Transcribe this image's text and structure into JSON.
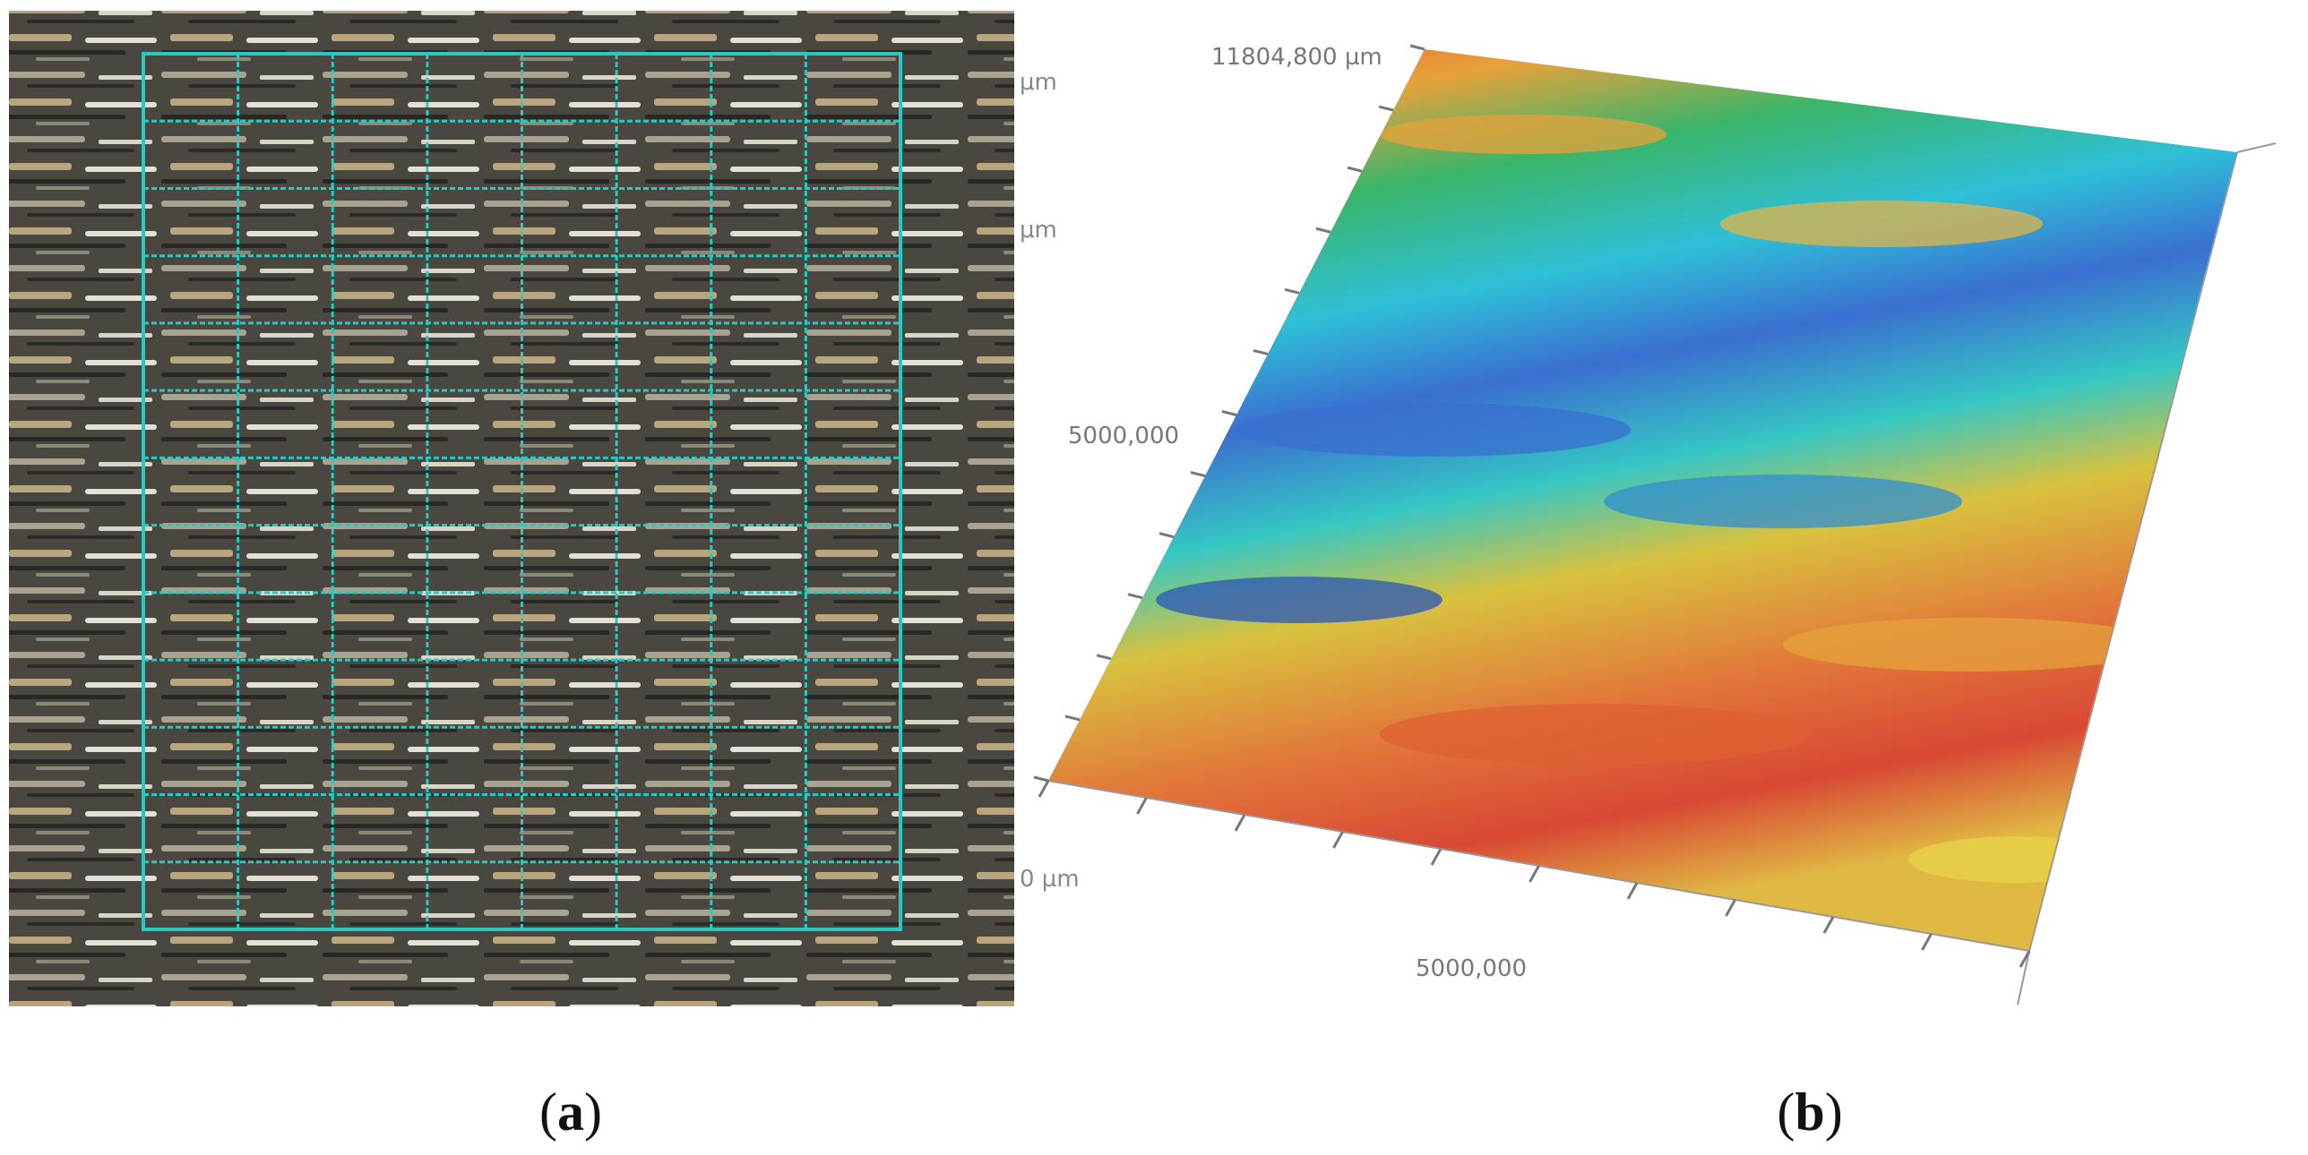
{
  "panel_a": {
    "caption_letter": "a",
    "caption_open": "(",
    "caption_close": ")",
    "labels_clipped": [
      "",
      "",
      "0 µm"
    ],
    "grid_color": "#27c9c0"
  },
  "panel_b": {
    "caption_letter": "b",
    "caption_open": "(",
    "caption_close": ")",
    "label_top": "11804,800 µm",
    "label_left": "5000,000",
    "label_bottom": "5000,000"
  }
}
